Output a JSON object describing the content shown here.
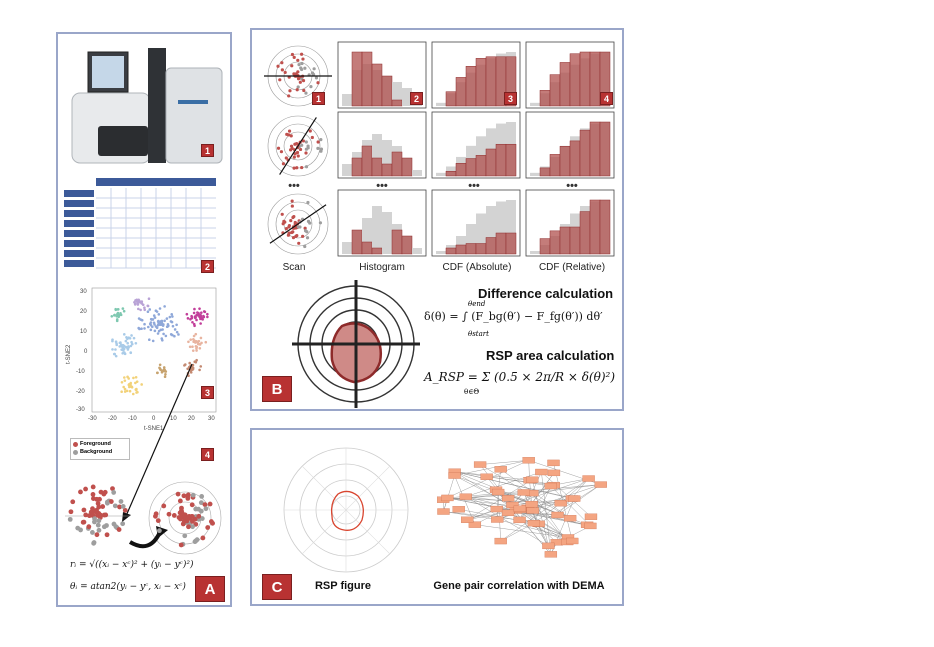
{
  "panels": {
    "a": {
      "badge": "A",
      "steps": [
        "1",
        "2",
        "3",
        "4"
      ],
      "legend": {
        "fg": "Foreground",
        "bg": "Background"
      },
      "tsne": {
        "xlabel": "t-SNE1",
        "ylabel": "t-SNE2",
        "xticks": [
          "-30",
          "-20",
          "-10",
          "0",
          "10",
          "20",
          "30"
        ],
        "yticks": [
          "30",
          "20",
          "10",
          "0",
          "-10",
          "-20",
          "-30"
        ]
      },
      "formula_r": "rᵢ = √((xᵢ − xᶜ)² + (yᵢ − yᶜ)²)",
      "formula_theta": "θᵢ = atan2(yᵢ − yᶜ, xᵢ − xᶜ)"
    },
    "b": {
      "badge": "B",
      "steps": [
        "1",
        "2",
        "3",
        "4"
      ],
      "col_labels": [
        "Scan",
        "Histogram",
        "CDF (Absolute)",
        "CDF (Relative)"
      ],
      "ellipsis": "•••",
      "difference_title": "Difference calculation",
      "difference_formula": "δ(θ) = ∫ (F_bg(θ′) − F_fg(θ′)) dθ′",
      "integral_upper": "θend",
      "integral_lower": "θstart",
      "area_title": "RSP area calculation",
      "area_formula": "A_RSP = Σ (0.5 × 2π/R × δ(θ)²)",
      "sum_index": "θ∈Θ"
    },
    "c": {
      "badge": "C",
      "rsp_caption": "RSP figure",
      "network_caption": "Gene pair correlation with DEMA"
    }
  },
  "colors": {
    "panel_border": "#9aa6c9",
    "badge": "#b83232",
    "fg": "#c0504d",
    "bg": "#9e9e9e",
    "node": "#f4a582"
  }
}
